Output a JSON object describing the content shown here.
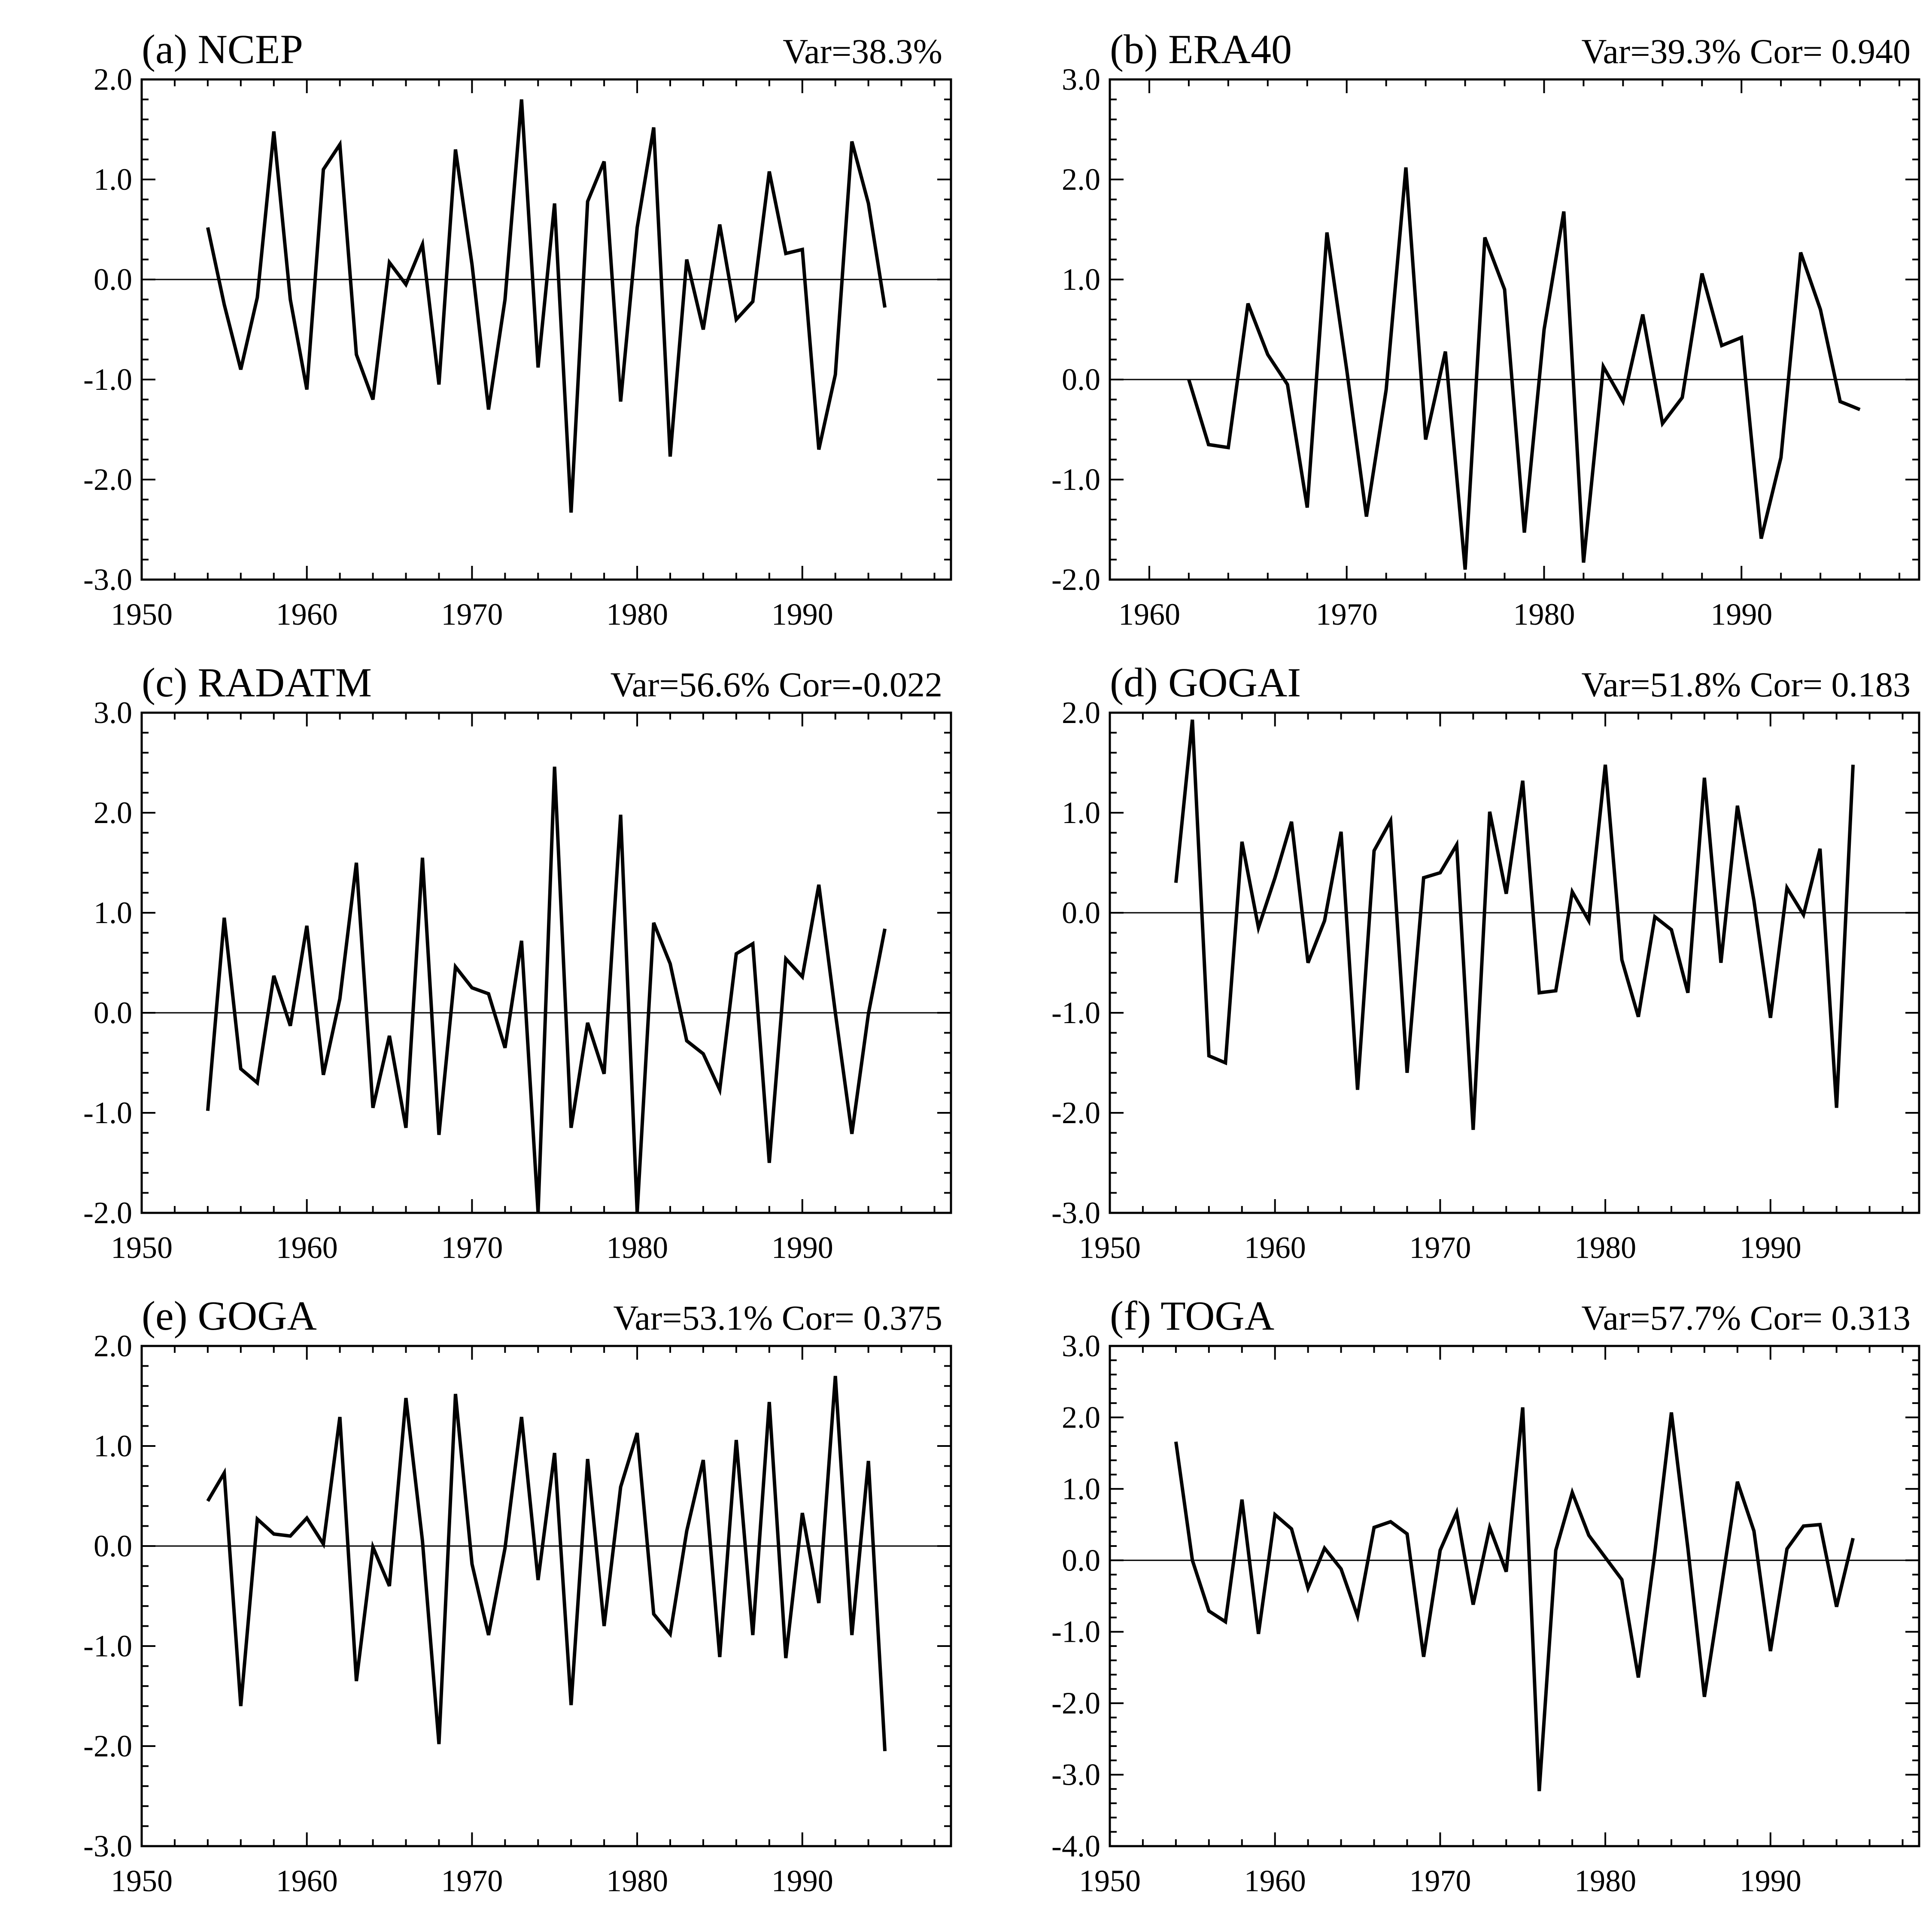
{
  "chart_data": [
    {
      "type": "line",
      "title": "(a) NCEP",
      "stats": "Var=38.3%",
      "x": [
        1954,
        1955,
        1956,
        1957,
        1958,
        1959,
        1960,
        1961,
        1962,
        1963,
        1964,
        1965,
        1966,
        1967,
        1968,
        1969,
        1970,
        1971,
        1972,
        1973,
        1974,
        1975,
        1976,
        1977,
        1978,
        1979,
        1980,
        1981,
        1982,
        1983,
        1984,
        1985,
        1986,
        1987,
        1988,
        1989,
        1990,
        1991,
        1992,
        1993,
        1994,
        1995
      ],
      "series": [
        {
          "values": [
            0.52,
            -0.25,
            -0.9,
            -0.18,
            1.48,
            -0.2,
            -1.1,
            1.1,
            1.35,
            -0.75,
            -1.2,
            0.17,
            -0.05,
            0.35,
            -1.05,
            1.3,
            0.15,
            -1.3,
            -0.2,
            1.8,
            -0.88,
            0.76,
            -2.33,
            0.78,
            1.18,
            -1.22,
            0.52,
            1.52,
            -1.77,
            0.2,
            -0.5,
            0.55,
            -0.4,
            -0.22,
            1.08,
            0.26,
            0.3,
            -1.7,
            -0.95,
            1.38,
            0.76,
            -0.28
          ]
        }
      ],
      "xlim": [
        1950,
        1999
      ],
      "ylim": [
        -3,
        2
      ],
      "xticks": [
        "1950",
        "1960",
        "1970",
        "1980",
        "1990"
      ],
      "yticks": [
        "-3.0",
        "-2.0",
        "-1.0",
        "0.0",
        "1.0",
        "2.0"
      ]
    },
    {
      "type": "line",
      "title": "(b) ERA40",
      "stats": "Var=39.3%  Cor= 0.940",
      "x": [
        1962,
        1963,
        1964,
        1965,
        1966,
        1967,
        1968,
        1969,
        1970,
        1971,
        1972,
        1973,
        1974,
        1975,
        1976,
        1977,
        1978,
        1979,
        1980,
        1981,
        1982,
        1983,
        1984,
        1985,
        1986,
        1987,
        1988,
        1989,
        1990,
        1991,
        1992,
        1993,
        1994,
        1995,
        1996
      ],
      "series": [
        {
          "values": [
            0.0,
            -0.65,
            -0.68,
            0.76,
            0.25,
            -0.05,
            -1.28,
            1.47,
            0.1,
            -1.37,
            -0.1,
            2.12,
            -0.6,
            0.28,
            -1.9,
            1.42,
            0.9,
            -1.53,
            0.5,
            1.68,
            -1.83,
            0.13,
            -0.22,
            0.65,
            -0.44,
            -0.18,
            1.06,
            0.34,
            0.42,
            -1.59,
            -0.78,
            1.27,
            0.7,
            -0.22,
            -0.3
          ]
        }
      ],
      "xlim": [
        1958,
        1999
      ],
      "ylim": [
        -2,
        3
      ],
      "xticks": [
        "1960",
        "1970",
        "1980",
        "1990"
      ],
      "yticks": [
        "-2.0",
        "-1.0",
        "0.0",
        "1.0",
        "2.0",
        "3.0"
      ]
    },
    {
      "type": "line",
      "title": "(c) RADATM",
      "stats": "Var=56.6%  Cor=-0.022",
      "x": [
        1954,
        1955,
        1956,
        1957,
        1958,
        1959,
        1960,
        1961,
        1962,
        1963,
        1964,
        1965,
        1966,
        1967,
        1968,
        1969,
        1970,
        1971,
        1972,
        1973,
        1974,
        1975,
        1976,
        1977,
        1978,
        1979,
        1980,
        1981,
        1982,
        1983,
        1984,
        1985,
        1986,
        1987,
        1988,
        1989,
        1990,
        1991,
        1992,
        1993,
        1994,
        1995
      ],
      "series": [
        {
          "values": [
            -0.98,
            0.95,
            -0.56,
            -0.7,
            0.37,
            -0.13,
            0.87,
            -0.62,
            0.14,
            1.5,
            -0.95,
            -0.23,
            -1.15,
            1.55,
            -1.22,
            0.46,
            0.25,
            0.19,
            -0.35,
            0.72,
            -2.0,
            2.46,
            -1.15,
            -0.1,
            -0.61,
            1.98,
            -2.0,
            0.9,
            0.49,
            -0.28,
            -0.41,
            -0.77,
            0.59,
            0.69,
            -1.5,
            0.54,
            0.36,
            1.28,
            0.0,
            -1.21,
            -0.01,
            0.84
          ]
        }
      ],
      "xlim": [
        1950,
        1999
      ],
      "ylim": [
        -2,
        3
      ],
      "xticks": [
        "1950",
        "1960",
        "1970",
        "1980",
        "1990"
      ],
      "yticks": [
        "-2.0",
        "-1.0",
        "0.0",
        "1.0",
        "2.0",
        "3.0"
      ]
    },
    {
      "type": "line",
      "title": "(d) GOGAI",
      "stats": "Var=51.8%  Cor= 0.183",
      "x": [
        1954,
        1955,
        1956,
        1957,
        1958,
        1959,
        1960,
        1961,
        1962,
        1963,
        1964,
        1965,
        1966,
        1967,
        1968,
        1969,
        1970,
        1971,
        1972,
        1973,
        1974,
        1975,
        1976,
        1977,
        1978,
        1979,
        1980,
        1981,
        1982,
        1983,
        1984,
        1985,
        1986,
        1987,
        1988,
        1989,
        1990,
        1991,
        1992,
        1993,
        1994,
        1995
      ],
      "series": [
        {
          "values": [
            0.3,
            1.93,
            -1.43,
            -1.5,
            0.71,
            -0.15,
            0.35,
            0.91,
            -0.5,
            -0.08,
            0.81,
            -1.77,
            0.62,
            0.92,
            -1.6,
            0.35,
            0.4,
            0.68,
            -2.17,
            1.01,
            0.19,
            1.32,
            -0.8,
            -0.78,
            0.21,
            -0.08,
            1.48,
            -0.47,
            -1.04,
            -0.04,
            -0.17,
            -0.8,
            1.35,
            -0.5,
            1.07,
            0.12,
            -1.05,
            0.25,
            -0.02,
            0.64,
            -1.95,
            1.48
          ]
        }
      ],
      "xlim": [
        1950,
        1999
      ],
      "ylim": [
        -3,
        2
      ],
      "xticks": [
        "1950",
        "1960",
        "1970",
        "1980",
        "1990"
      ],
      "yticks": [
        "-3.0",
        "-2.0",
        "-1.0",
        "0.0",
        "1.0",
        "2.0"
      ]
    },
    {
      "type": "line",
      "title": "(e) GOGA",
      "stats": "Var=53.1%  Cor= 0.375",
      "x": [
        1954,
        1955,
        1956,
        1957,
        1958,
        1959,
        1960,
        1961,
        1962,
        1963,
        1964,
        1965,
        1966,
        1967,
        1968,
        1969,
        1970,
        1971,
        1972,
        1973,
        1974,
        1975,
        1976,
        1977,
        1978,
        1979,
        1980,
        1981,
        1982,
        1983,
        1984,
        1985,
        1986,
        1987,
        1988,
        1989,
        1990,
        1991,
        1992,
        1993,
        1994,
        1995
      ],
      "series": [
        {
          "values": [
            0.45,
            0.73,
            -1.6,
            0.27,
            0.12,
            0.1,
            0.28,
            0.02,
            1.29,
            -1.35,
            -0.01,
            -0.4,
            1.48,
            0.05,
            -1.98,
            1.52,
            -0.18,
            -0.89,
            -0.02,
            1.29,
            -0.34,
            0.93,
            -1.59,
            0.87,
            -0.8,
            0.59,
            1.13,
            -0.68,
            -0.88,
            0.15,
            0.86,
            -1.11,
            1.06,
            -0.89,
            1.44,
            -1.12,
            0.33,
            -0.57,
            1.7,
            -0.89,
            0.85,
            -2.05
          ]
        }
      ],
      "xlim": [
        1950,
        1999
      ],
      "ylim": [
        -3,
        2
      ],
      "xticks": [
        "1950",
        "1960",
        "1970",
        "1980",
        "1990"
      ],
      "yticks": [
        "-3.0",
        "-2.0",
        "-1.0",
        "0.0",
        "1.0",
        "2.0"
      ]
    },
    {
      "type": "line",
      "title": "(f) TOGA",
      "stats": "Var=57.7%  Cor= 0.313",
      "x": [
        1954,
        1955,
        1956,
        1957,
        1958,
        1959,
        1960,
        1961,
        1962,
        1963,
        1964,
        1965,
        1966,
        1967,
        1968,
        1969,
        1970,
        1971,
        1972,
        1973,
        1974,
        1975,
        1976,
        1977,
        1978,
        1979,
        1980,
        1981,
        1982,
        1983,
        1984,
        1985,
        1986,
        1987,
        1988,
        1989,
        1990,
        1991,
        1992,
        1993,
        1994,
        1995
      ],
      "series": [
        {
          "values": [
            1.66,
            0.0,
            -0.71,
            -0.86,
            0.85,
            -1.03,
            0.64,
            0.44,
            -0.39,
            0.17,
            -0.12,
            -0.78,
            0.46,
            0.54,
            0.37,
            -1.35,
            0.14,
            0.67,
            -0.62,
            0.46,
            -0.16,
            2.14,
            -3.23,
            0.14,
            0.95,
            0.35,
            0.04,
            -0.27,
            -1.64,
            0.11,
            2.07,
            0.17,
            -1.91,
            -0.42,
            1.1,
            0.41,
            -1.27,
            0.16,
            0.48,
            0.5,
            -0.65,
            0.31
          ]
        }
      ],
      "xlim": [
        1950,
        1999
      ],
      "ylim": [
        -4,
        3
      ],
      "xticks": [
        "1950",
        "1960",
        "1970",
        "1980",
        "1990"
      ],
      "yticks": [
        "-4.0",
        "-3.0",
        "-2.0",
        "-1.0",
        "0.0",
        "1.0",
        "2.0",
        "3.0"
      ]
    }
  ]
}
